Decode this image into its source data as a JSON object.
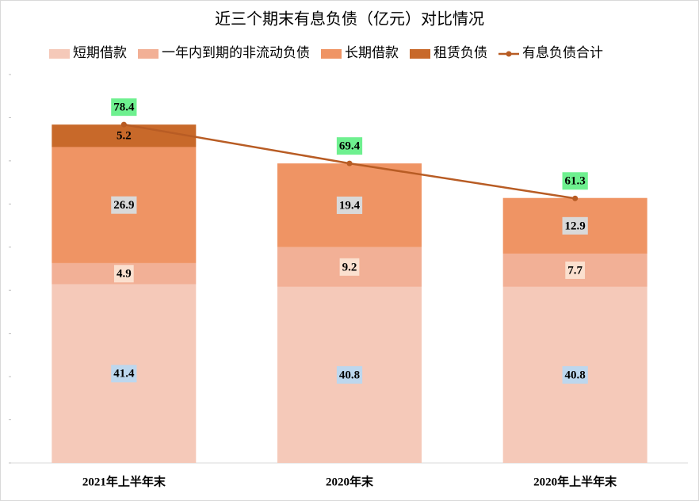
{
  "chart_data": {
    "type": "stacked_bar_line",
    "title": "近三个期末有息负债（亿元）对比情况",
    "categories": [
      "2021年上半年末",
      "2020年末",
      "2020年上半年末"
    ],
    "series": [
      {
        "name": "短期借款",
        "color": "#f5c9b9",
        "label_bg": "#bdd7ee",
        "values": [
          41.4,
          40.8,
          40.8
        ]
      },
      {
        "name": "一年内到期的非流动负债",
        "color": "#f2b096",
        "label_bg": "#fbe0cf",
        "values": [
          4.9,
          9.2,
          7.7
        ]
      },
      {
        "name": "长期借款",
        "color": "#ef9464",
        "label_bg": "#d9d9d9",
        "values": [
          26.9,
          19.4,
          12.9
        ]
      },
      {
        "name": "租赁负债",
        "color": "#c8692a",
        "label_bg": null,
        "values": [
          5.2,
          null,
          null
        ]
      },
      {
        "name": "有息负债合计",
        "type": "line",
        "color": "#b85c24",
        "label_bg": "#6ef08f",
        "values": [
          78.4,
          69.4,
          61.3
        ]
      }
    ],
    "ylim": [
      0,
      90
    ],
    "yticks": [
      0,
      10,
      20,
      30,
      40,
      50,
      60,
      70,
      80,
      90
    ]
  }
}
